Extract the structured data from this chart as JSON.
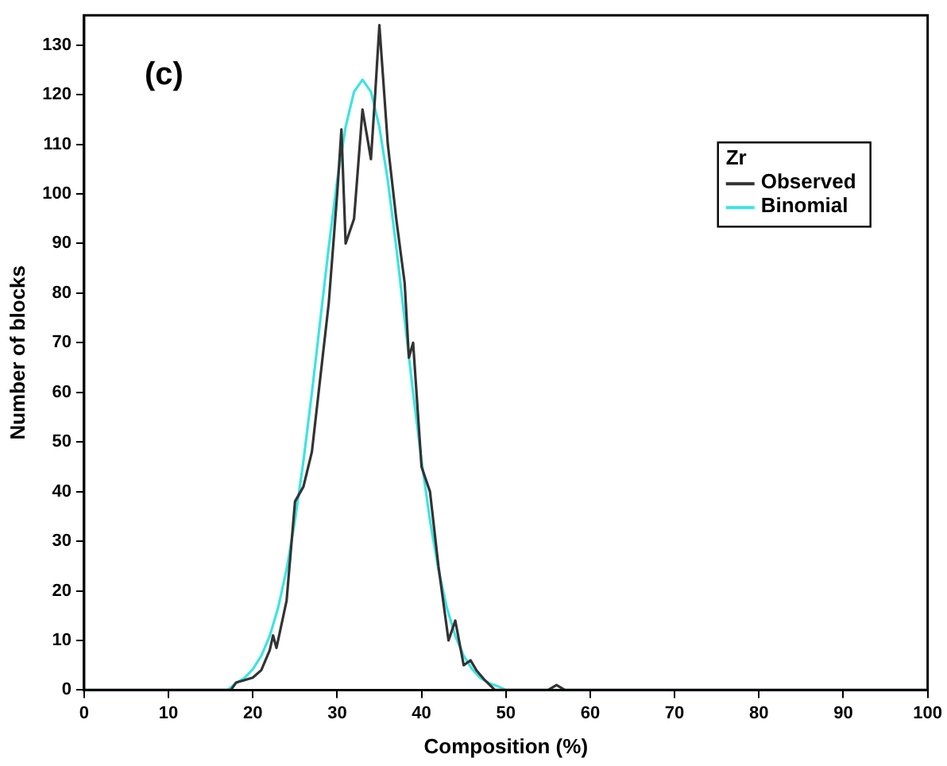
{
  "chart_data": {
    "type": "line",
    "xlabel": "Composition (%)",
    "ylabel": "Number of blocks",
    "legend_title": "Zr",
    "annotations": [
      "(c)"
    ],
    "xlim": [
      0,
      100
    ],
    "ylim": [
      0,
      136
    ],
    "xticks": [
      0,
      10,
      20,
      30,
      40,
      50,
      60,
      70,
      80,
      90,
      100
    ],
    "yticks": [
      0,
      10,
      20,
      30,
      40,
      50,
      60,
      70,
      80,
      90,
      100,
      110,
      120,
      130
    ],
    "legend": "top right",
    "grid": false,
    "marker": "none",
    "line_style": "solid",
    "series": [
      {
        "name": "Observed",
        "color": "#333333",
        "x": [
          0,
          17.4,
          18,
          19,
          20,
          21,
          22,
          22.4,
          22.8,
          24,
          25,
          26,
          27,
          28,
          29,
          30,
          30.5,
          31,
          32,
          33,
          34,
          34.5,
          35,
          36,
          37,
          38,
          38.5,
          39,
          40,
          41,
          42,
          43.2,
          44,
          45,
          45.8,
          46.5,
          47.5,
          48.7,
          55,
          56,
          57,
          100
        ],
        "values": [
          0,
          0,
          1.5,
          2,
          2.5,
          4,
          8,
          11,
          8.5,
          18,
          38,
          41,
          48,
          63,
          78,
          100,
          113,
          90,
          95,
          117,
          107,
          120,
          134,
          110,
          95,
          82,
          67,
          70,
          45,
          40,
          25,
          10,
          14,
          5,
          6,
          4,
          2,
          0,
          0,
          1,
          0,
          0
        ]
      },
      {
        "name": "Binomial",
        "color": "#3de3e3",
        "x": [
          0,
          17,
          18,
          19,
          20,
          21,
          22,
          23,
          24,
          25,
          26,
          27,
          28,
          29,
          30,
          31,
          32,
          33,
          34,
          35,
          36,
          37,
          38,
          39,
          40,
          41,
          42,
          43,
          44,
          45,
          46,
          47,
          48,
          49,
          50,
          100
        ],
        "values": [
          0,
          0,
          1.4,
          2.4,
          4.2,
          6.9,
          10.9,
          16.6,
          24.3,
          34.2,
          46.2,
          59.9,
          74.6,
          89.3,
          102.7,
          113.5,
          120.6,
          123,
          120.6,
          113.5,
          102.7,
          89.3,
          74.6,
          59.9,
          46.2,
          34.2,
          24.3,
          16.6,
          10.9,
          6.9,
          4.2,
          2.4,
          1.4,
          0.8,
          0,
          0
        ]
      }
    ]
  }
}
